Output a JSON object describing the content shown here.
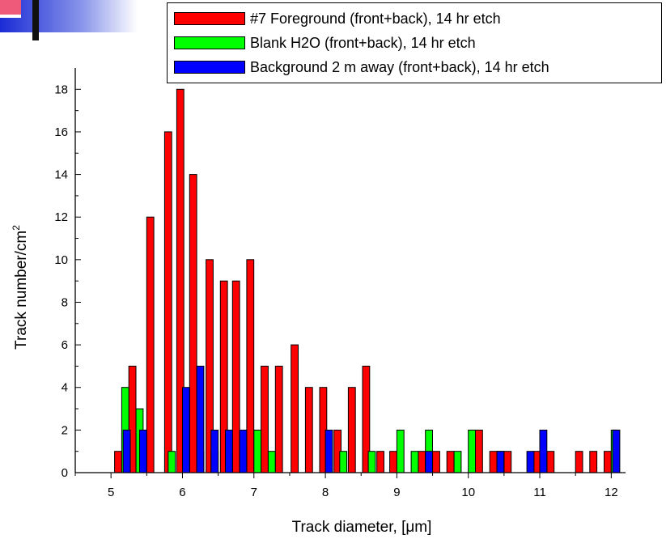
{
  "chart_data": {
    "type": "bar",
    "xlabel_prefix": "Track diameter, [",
    "xlabel_unit": "μm",
    "xlabel_suffix": "]",
    "ylabel": "Track number/cm",
    "ylabel_sup": "2",
    "xlim": [
      4.5,
      12.2
    ],
    "ylim": [
      0,
      19
    ],
    "x_ticks": [
      5,
      6,
      7,
      8,
      9,
      10,
      11,
      12
    ],
    "y_ticks": [
      0,
      2,
      4,
      6,
      8,
      10,
      12,
      14,
      16,
      18
    ],
    "bar_width": 0.1,
    "series": [
      {
        "name": "#7 Foreground (front+back), 14 hr etch",
        "color": "#ff0000",
        "points": [
          {
            "x": 5.1,
            "y": 1
          },
          {
            "x": 5.3,
            "y": 5
          },
          {
            "x": 5.55,
            "y": 12
          },
          {
            "x": 5.8,
            "y": 16
          },
          {
            "x": 5.97,
            "y": 18
          },
          {
            "x": 6.15,
            "y": 14
          },
          {
            "x": 6.38,
            "y": 10
          },
          {
            "x": 6.58,
            "y": 9
          },
          {
            "x": 6.75,
            "y": 9
          },
          {
            "x": 6.95,
            "y": 10
          },
          {
            "x": 7.15,
            "y": 5
          },
          {
            "x": 7.35,
            "y": 5
          },
          {
            "x": 7.57,
            "y": 6
          },
          {
            "x": 7.77,
            "y": 4
          },
          {
            "x": 7.97,
            "y": 4
          },
          {
            "x": 8.17,
            "y": 2
          },
          {
            "x": 8.37,
            "y": 4
          },
          {
            "x": 8.57,
            "y": 5
          },
          {
            "x": 8.77,
            "y": 1
          },
          {
            "x": 8.95,
            "y": 1
          },
          {
            "x": 9.35,
            "y": 1
          },
          {
            "x": 9.55,
            "y": 1
          },
          {
            "x": 9.75,
            "y": 1
          },
          {
            "x": 10.15,
            "y": 2
          },
          {
            "x": 10.35,
            "y": 1
          },
          {
            "x": 10.55,
            "y": 1
          },
          {
            "x": 10.95,
            "y": 1
          },
          {
            "x": 11.15,
            "y": 1
          },
          {
            "x": 11.55,
            "y": 1
          },
          {
            "x": 11.75,
            "y": 1
          },
          {
            "x": 11.95,
            "y": 1
          }
        ]
      },
      {
        "name": "Blank H2O (front+back), 14 hr etch",
        "color": "#00ff00",
        "points": [
          {
            "x": 5.2,
            "y": 4
          },
          {
            "x": 5.4,
            "y": 3
          },
          {
            "x": 5.85,
            "y": 1
          },
          {
            "x": 6.05,
            "y": 3
          },
          {
            "x": 6.25,
            "y": 1
          },
          {
            "x": 6.45,
            "y": 1
          },
          {
            "x": 6.65,
            "y": 1
          },
          {
            "x": 6.85,
            "y": 1
          },
          {
            "x": 7.05,
            "y": 2
          },
          {
            "x": 7.25,
            "y": 1
          },
          {
            "x": 8.25,
            "y": 1
          },
          {
            "x": 8.65,
            "y": 1
          },
          {
            "x": 9.05,
            "y": 2
          },
          {
            "x": 9.25,
            "y": 1
          },
          {
            "x": 9.45,
            "y": 2
          },
          {
            "x": 9.85,
            "y": 1
          },
          {
            "x": 10.05,
            "y": 2
          },
          {
            "x": 10.45,
            "y": 1
          },
          {
            "x": 12.05,
            "y": 2
          }
        ]
      },
      {
        "name": "Background 2 m away (front+back), 14 hr etch",
        "color": "#0000ff",
        "points": [
          {
            "x": 5.22,
            "y": 2
          },
          {
            "x": 5.45,
            "y": 2
          },
          {
            "x": 6.05,
            "y": 4
          },
          {
            "x": 6.25,
            "y": 5
          },
          {
            "x": 6.45,
            "y": 2
          },
          {
            "x": 6.65,
            "y": 2
          },
          {
            "x": 6.85,
            "y": 2
          },
          {
            "x": 8.05,
            "y": 2
          },
          {
            "x": 9.45,
            "y": 1
          },
          {
            "x": 10.45,
            "y": 1
          },
          {
            "x": 10.87,
            "y": 1
          },
          {
            "x": 11.05,
            "y": 2
          },
          {
            "x": 12.07,
            "y": 2
          }
        ]
      }
    ],
    "legend": "top-right",
    "grid": false
  }
}
